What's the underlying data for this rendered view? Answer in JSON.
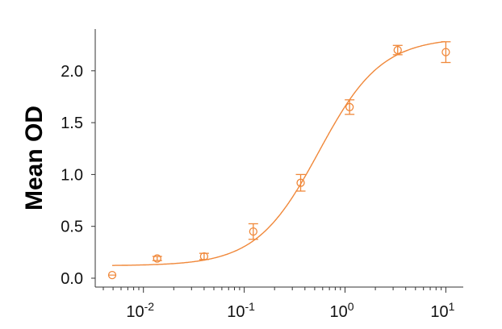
{
  "chart_data": {
    "type": "scatter",
    "title": "",
    "xlabel": "",
    "ylabel": "Mean OD",
    "xscale": "log",
    "xlim": [
      0.0035,
      14
    ],
    "ylim": [
      0,
      2.35
    ],
    "x_ticks": [
      0.01,
      0.1,
      1,
      10
    ],
    "x_tick_labels": [
      {
        "base": "10",
        "exp": "-2"
      },
      {
        "base": "10",
        "exp": "-1"
      },
      {
        "base": "10",
        "exp": "0"
      },
      {
        "base": "10",
        "exp": "1"
      }
    ],
    "y_ticks": [
      0,
      0.5,
      1,
      1.5,
      2
    ],
    "y_tick_labels": [
      "0.0",
      "0.5",
      "1.0",
      "1.5",
      "2.0"
    ],
    "grid": false,
    "color": "#f0883a",
    "series": [
      {
        "x": [
          0.0049,
          0.0137,
          0.04,
          0.123,
          0.363,
          1.11,
          3.33,
          10
        ],
        "y": [
          0.03,
          0.19,
          0.21,
          0.45,
          0.92,
          1.65,
          2.2,
          2.18
        ],
        "error": [
          0.0,
          0.02,
          0.03,
          0.075,
          0.08,
          0.07,
          0.045,
          0.1
        ]
      }
    ],
    "fit": {
      "model": "4PL",
      "bottom": 0.12,
      "top": 2.32,
      "ec50": 0.55,
      "hill": 1.4
    }
  }
}
